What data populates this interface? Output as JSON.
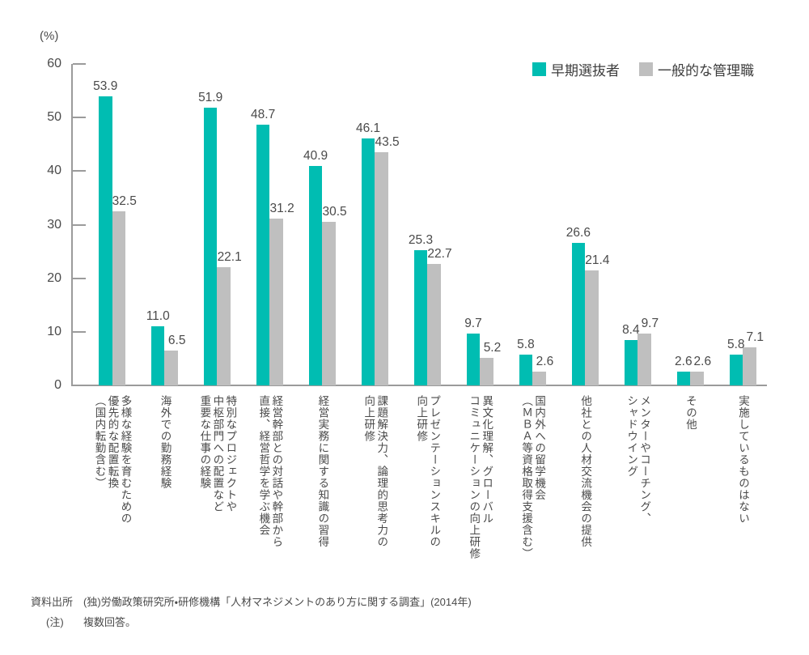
{
  "chart": {
    "unit_label": "(%)"
  },
  "chart_data": {
    "type": "bar",
    "title": "",
    "ylabel": "(%)",
    "xlabel": "",
    "ylim": [
      0,
      60
    ],
    "yticks": [
      0,
      10,
      20,
      30,
      40,
      50,
      60
    ],
    "grid": false,
    "legend_position": "top-right",
    "categories": [
      "多様な経験を育むための\n優先的な配置転換\n（国内転勤含む）",
      "海外での勤務経験",
      "特別なプロジェクトや\n中枢部門への配置など\n重要な仕事の経験",
      "経営幹部との対話や幹部から\n直接、経営哲学を学ぶ機会",
      "経営実務に関する知識の習得",
      "課題解決力、論理的思考力の\n向上研修",
      "プレゼンテーションスキルの\n向上研修",
      "異文化理解、グローバル\nコミュニケーションの向上研修",
      "国内外への留学機会\n（ＭＢＡ等資格取得支援含む）",
      "他社との人材交流機会の提供",
      "メンターやコーチング、\nシャドウイング",
      "その他",
      "実施しているものはない"
    ],
    "series": [
      {
        "name": "早期選抜者",
        "color": "#00BDB2",
        "values": [
          53.9,
          11.0,
          51.9,
          48.7,
          40.9,
          46.1,
          25.3,
          9.7,
          5.8,
          26.6,
          8.4,
          2.6,
          5.8
        ]
      },
      {
        "name": "一般的な管理職",
        "color": "#BFBFBF",
        "values": [
          32.5,
          6.5,
          22.1,
          31.2,
          30.5,
          43.5,
          22.7,
          5.2,
          2.6,
          21.4,
          9.7,
          2.6,
          7.1
        ]
      }
    ]
  },
  "footer": {
    "source_label": "資料出所",
    "source_text": "(独)労働政策研究所・研修機構「人材マネジメントのあり方に関する調査」(2014年)",
    "note_label": "(注)",
    "note_text": "複数回答。"
  }
}
